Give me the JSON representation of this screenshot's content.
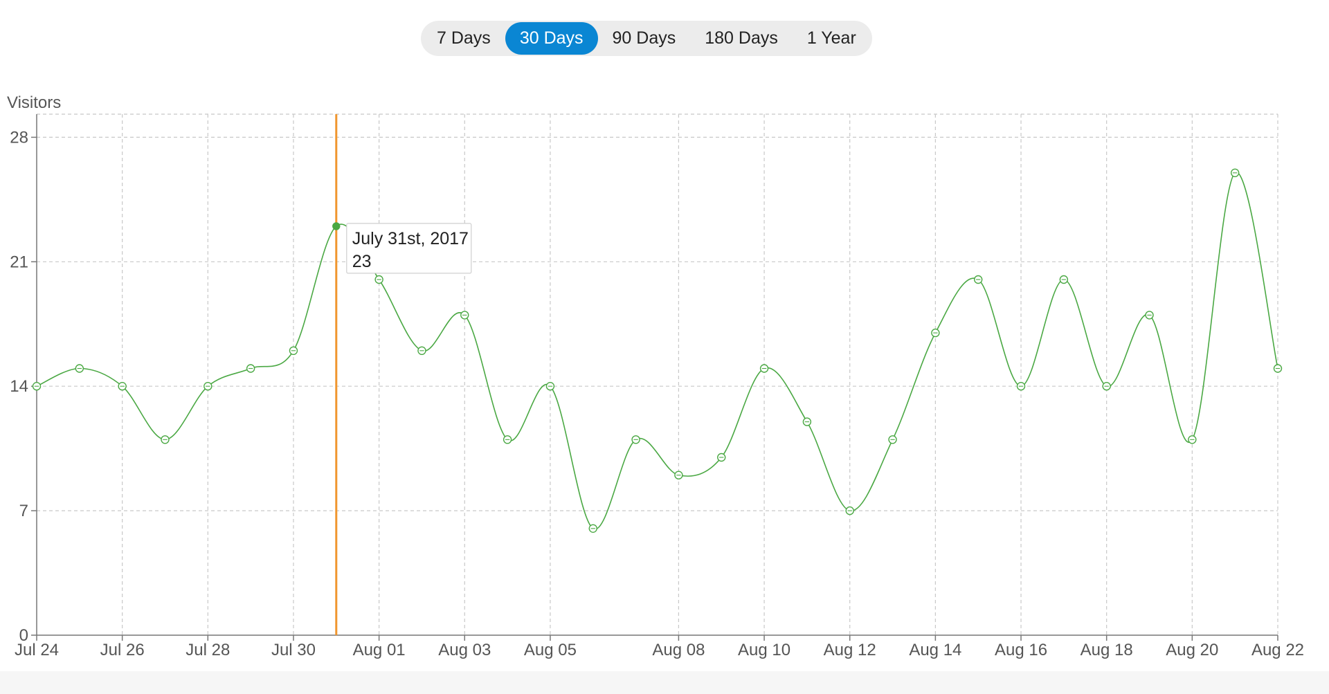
{
  "range_selector": {
    "options": [
      "7 Days",
      "30 Days",
      "90 Days",
      "180 Days",
      "1 Year"
    ],
    "active_index": 1,
    "active_color": "#0a86d3"
  },
  "chart_data": {
    "type": "line",
    "ylabel": "Visitors",
    "ylim": [
      0,
      29.3
    ],
    "yticks": [
      0,
      7,
      14,
      21,
      28
    ],
    "grid": true,
    "line_color": "#4aa843",
    "series": [
      {
        "x": [
          "2017-07-24",
          "2017-07-25",
          "2017-07-26",
          "2017-07-27",
          "2017-07-28",
          "2017-07-29",
          "2017-07-30",
          "2017-07-31",
          "2017-08-01",
          "2017-08-02",
          "2017-08-03",
          "2017-08-04",
          "2017-08-05",
          "2017-08-06",
          "2017-08-07",
          "2017-08-08",
          "2017-08-09",
          "2017-08-10",
          "2017-08-11",
          "2017-08-12",
          "2017-08-13",
          "2017-08-14",
          "2017-08-15",
          "2017-08-16",
          "2017-08-17",
          "2017-08-18",
          "2017-08-19",
          "2017-08-20",
          "2017-08-21",
          "2017-08-22"
        ],
        "values": [
          14,
          15,
          14,
          11,
          14,
          15,
          16,
          23,
          20,
          16,
          18,
          11,
          14,
          6,
          11,
          9,
          10,
          15,
          12,
          7,
          11,
          17,
          20,
          14,
          20,
          14,
          18,
          11,
          26,
          15
        ]
      }
    ],
    "x_tick_labels": [
      {
        "date": "2017-07-24",
        "label": "Jul 24"
      },
      {
        "date": "2017-07-26",
        "label": "Jul 26"
      },
      {
        "date": "2017-07-28",
        "label": "Jul 28"
      },
      {
        "date": "2017-07-30",
        "label": "Jul 30"
      },
      {
        "date": "2017-08-01",
        "label": "Aug 01"
      },
      {
        "date": "2017-08-03",
        "label": "Aug 03"
      },
      {
        "date": "2017-08-05",
        "label": "Aug 05"
      },
      {
        "date": "2017-08-08",
        "label": "Aug 08"
      },
      {
        "date": "2017-08-10",
        "label": "Aug 10"
      },
      {
        "date": "2017-08-12",
        "label": "Aug 12"
      },
      {
        "date": "2017-08-14",
        "label": "Aug 14"
      },
      {
        "date": "2017-08-16",
        "label": "Aug 16"
      },
      {
        "date": "2017-08-18",
        "label": "Aug 18"
      },
      {
        "date": "2017-08-20",
        "label": "Aug 20"
      },
      {
        "date": "2017-08-22",
        "label": "Aug 22"
      }
    ],
    "tooltip": {
      "date": "2017-07-31",
      "title": "July 31st, 2017",
      "value": "23",
      "crosshair_color": "#f0962e"
    }
  }
}
